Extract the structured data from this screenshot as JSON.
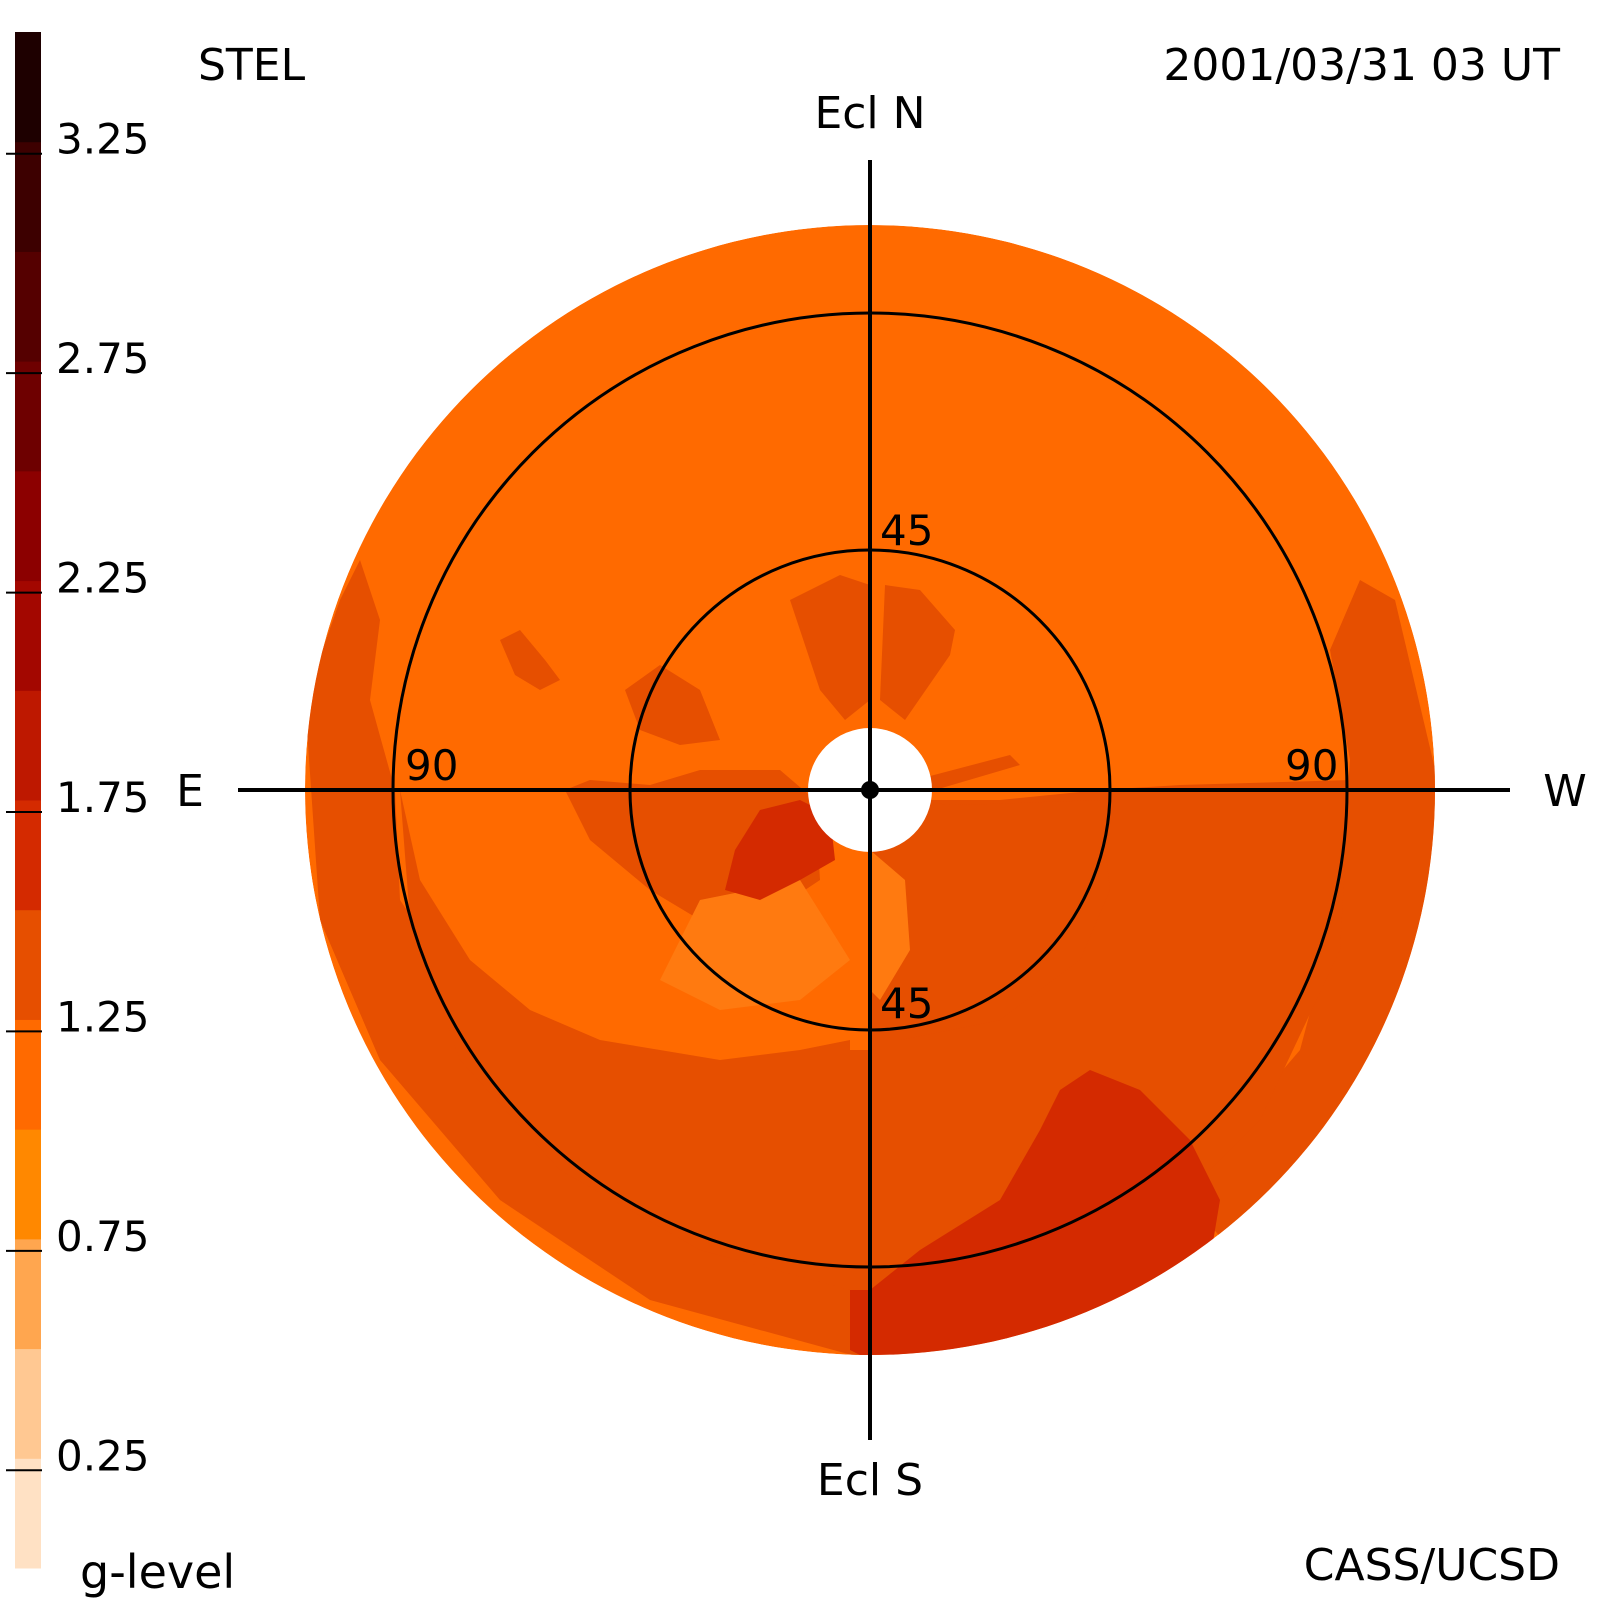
{
  "header": {
    "instrument": "STEL",
    "timestamp": "2001/03/31 03 UT",
    "credit": "CASS/UCSD"
  },
  "colorbar": {
    "label": "g-level",
    "ticks": [
      "3.25",
      "2.75",
      "2.25",
      "1.75",
      "1.25",
      "0.75",
      "0.25"
    ],
    "tick_values": [
      3.25,
      2.75,
      2.25,
      1.75,
      1.25,
      0.75,
      0.25
    ],
    "range": [
      0,
      3.5
    ],
    "colors": [
      "#ffe1c4",
      "#ffc892",
      "#ffa64f",
      "#ff8800",
      "#ff6a00",
      "#e64f00",
      "#d42a00",
      "#be1800",
      "#a30700",
      "#8c0000",
      "#6e0000",
      "#550000",
      "#3d0000",
      "#1e0000"
    ]
  },
  "compass": {
    "north": "Ecl N",
    "south": "Ecl S",
    "east": "E",
    "west": "W"
  },
  "rings": {
    "inner_label_top": "45",
    "inner_label_bottom": "45",
    "outer_label_east": "90",
    "outer_label_west": "90"
  },
  "chart_data": {
    "type": "heatmap",
    "projection": "fisheye sky map, elongation from Sun",
    "elongation_rings_deg": [
      45,
      90
    ],
    "colorbar_title": "g-level",
    "colorbar_ticks": [
      0.25,
      0.75,
      1.25,
      1.75,
      2.25,
      2.75,
      3.25
    ],
    "colorbar_range": [
      0,
      3.5
    ],
    "background_level": 0.8,
    "region_levels": {
      "background": 0.8,
      "enhanced": 1.1,
      "strong": 1.4,
      "weak": 0.7
    },
    "colors": {
      "background": "#ff6a00",
      "enhanced": "#e64f00",
      "strong": "#d42a00",
      "weak": "#ff7a10"
    }
  }
}
